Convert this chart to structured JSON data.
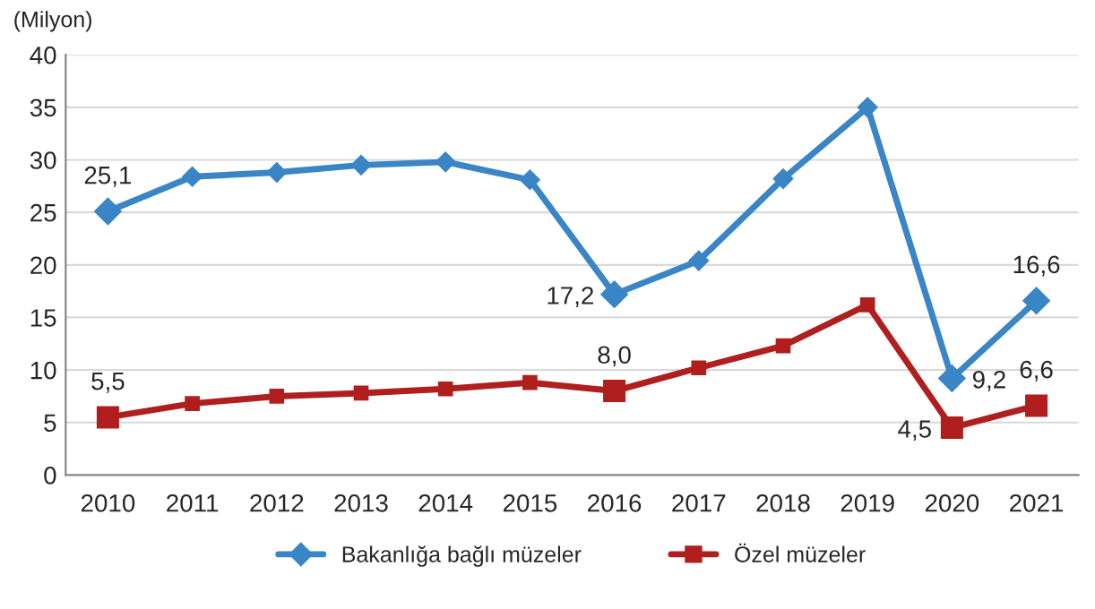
{
  "chart_data": {
    "type": "line",
    "ylabel": "(Milyon)",
    "categories": [
      "2010",
      "2011",
      "2012",
      "2013",
      "2014",
      "2015",
      "2016",
      "2017",
      "2018",
      "2019",
      "2020",
      "2021"
    ],
    "series": [
      {
        "name": "Bakanlığa bağlı müzeler",
        "color": "#3a85c6",
        "marker": "diamond",
        "values": [
          25.1,
          28.4,
          28.8,
          29.5,
          29.8,
          28.1,
          17.2,
          20.4,
          28.2,
          35.0,
          9.2,
          16.6
        ],
        "value_labels": [
          "25,1",
          null,
          null,
          null,
          null,
          null,
          "17,2",
          null,
          null,
          null,
          "9,2",
          "16,6"
        ]
      },
      {
        "name": "Özel müzeler",
        "color": "#b01e1e",
        "marker": "square",
        "values": [
          5.5,
          6.8,
          7.5,
          7.8,
          8.2,
          8.8,
          8.0,
          10.2,
          12.3,
          16.2,
          4.5,
          6.6
        ],
        "value_labels": [
          "5,5",
          null,
          null,
          null,
          null,
          null,
          "8,0",
          null,
          null,
          null,
          "4,5",
          "6,6"
        ]
      }
    ],
    "ylim": [
      0,
      40
    ],
    "yticks": [
      0,
      5,
      10,
      15,
      20,
      25,
      30,
      35,
      40
    ],
    "grid": "y",
    "legend": "bottom",
    "line_style": "solid"
  }
}
